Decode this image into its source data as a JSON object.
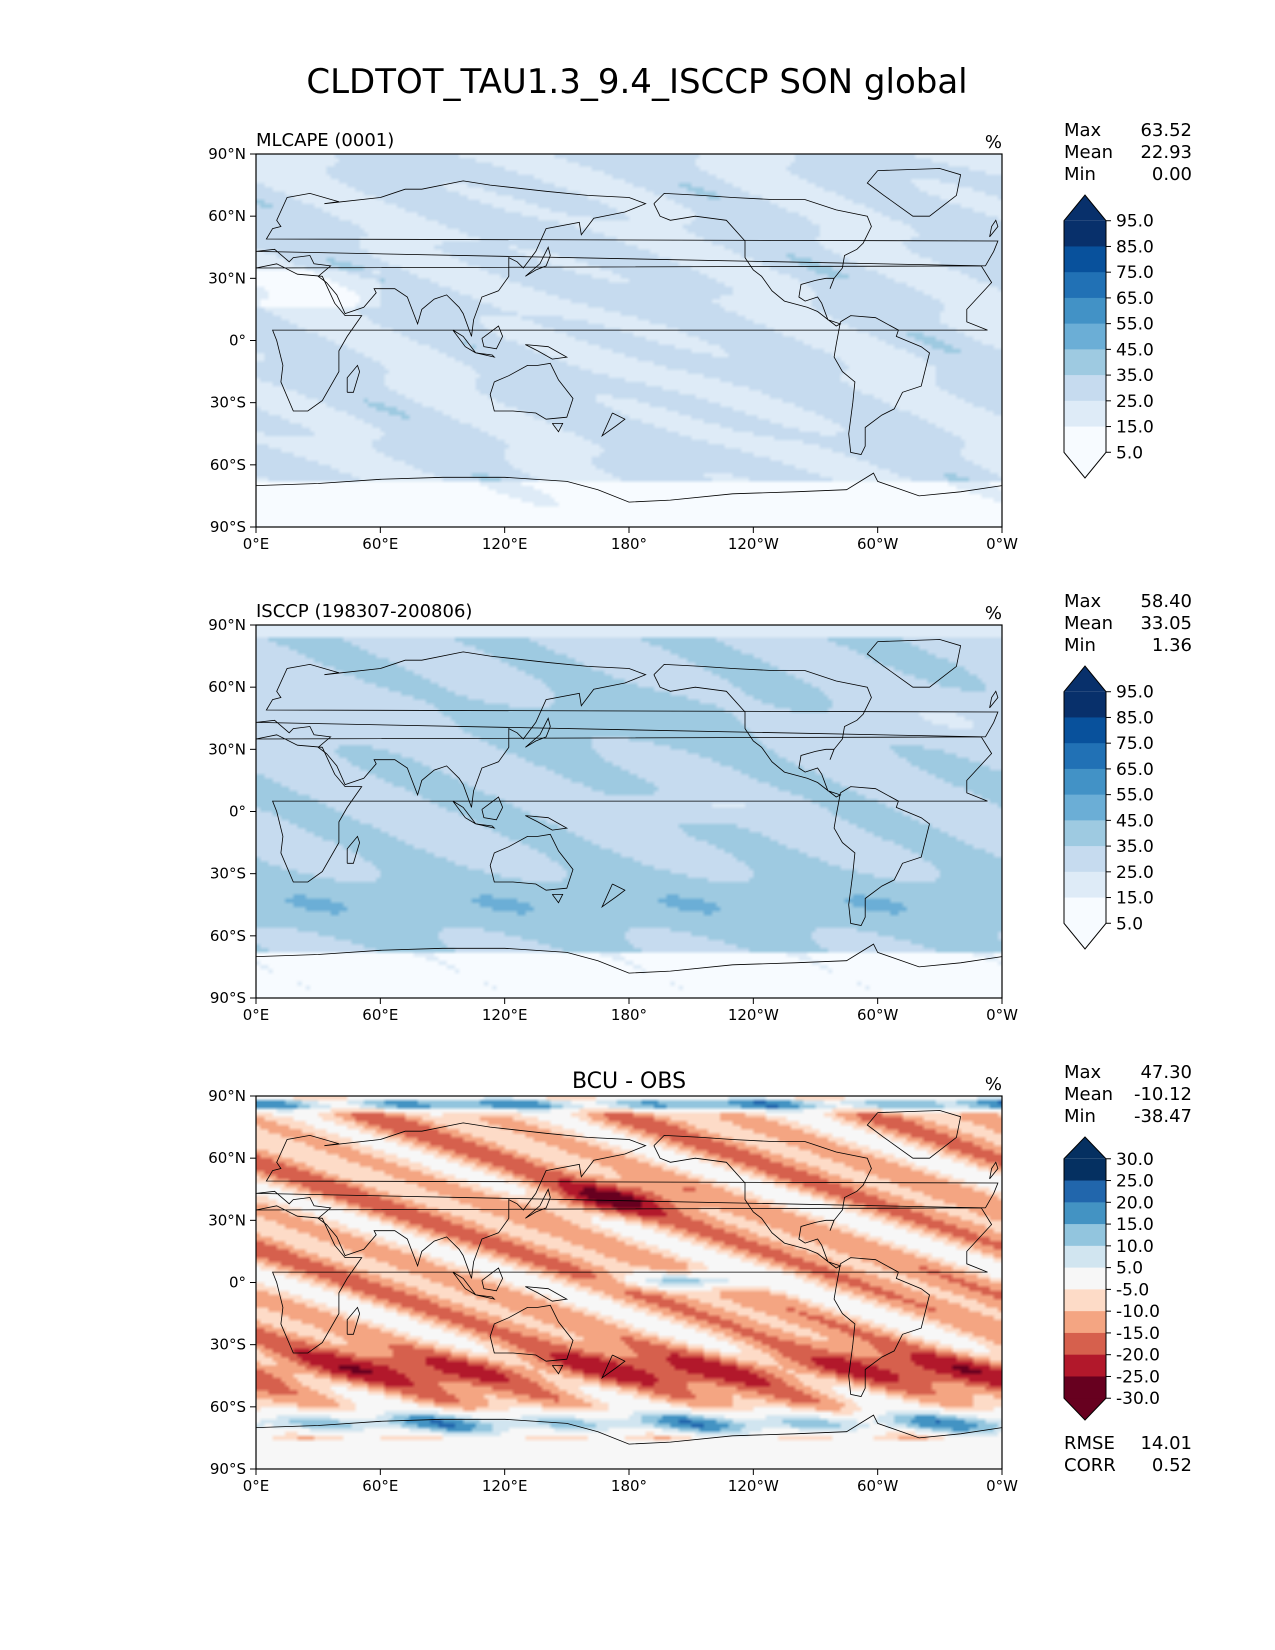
{
  "title": "CLDTOT_TAU1.3_9.4_ISCCP SON global",
  "chart_data": [
    {
      "type": "heatmap",
      "panel": "test",
      "left_title": "MLCAPE (0001)",
      "center_title": "",
      "units": "%",
      "stats": {
        "Max": "63.52",
        "Mean": "22.93",
        "Min": "0.00"
      },
      "xticks": [
        "0°E",
        "60°E",
        "120°E",
        "180°",
        "120°W",
        "60°W",
        "0°W"
      ],
      "yticks": [
        "90°N",
        "60°N",
        "30°N",
        "0°",
        "30°S",
        "60°S",
        "90°S"
      ],
      "colorbar": {
        "levels": [
          "95.0",
          "85.0",
          "75.0",
          "65.0",
          "55.0",
          "45.0",
          "35.0",
          "25.0",
          "15.0",
          "5.0"
        ],
        "colors": [
          "#08306b",
          "#08519c",
          "#2171b5",
          "#4292c6",
          "#6baed6",
          "#9ecae1",
          "#c6dbef",
          "#deebf7",
          "#f7fbff"
        ],
        "extend": "both"
      }
    },
    {
      "type": "heatmap",
      "panel": "reference",
      "left_title": "ISCCP (198307-200806)",
      "center_title": "",
      "units": "%",
      "stats": {
        "Max": "58.40",
        "Mean": "33.05",
        "Min": "1.36"
      },
      "xticks": [
        "0°E",
        "60°E",
        "120°E",
        "180°",
        "120°W",
        "60°W",
        "0°W"
      ],
      "yticks": [
        "90°N",
        "60°N",
        "30°N",
        "0°",
        "30°S",
        "60°S",
        "90°S"
      ],
      "colorbar": {
        "levels": [
          "95.0",
          "85.0",
          "75.0",
          "65.0",
          "55.0",
          "45.0",
          "35.0",
          "25.0",
          "15.0",
          "5.0"
        ],
        "colors": [
          "#08306b",
          "#08519c",
          "#2171b5",
          "#4292c6",
          "#6baed6",
          "#9ecae1",
          "#c6dbef",
          "#deebf7",
          "#f7fbff"
        ],
        "extend": "both"
      }
    },
    {
      "type": "heatmap",
      "panel": "difference",
      "left_title": "",
      "center_title": "BCU - OBS",
      "units": "%",
      "stats": {
        "Max": "47.30",
        "Mean": "-10.12",
        "Min": "-38.47"
      },
      "extra_stats": {
        "RMSE": "14.01",
        "CORR": "0.52"
      },
      "xticks": [
        "0°E",
        "60°E",
        "120°E",
        "180°",
        "120°W",
        "60°W",
        "0°W"
      ],
      "yticks": [
        "90°N",
        "60°N",
        "30°N",
        "0°",
        "30°S",
        "60°S",
        "90°S"
      ],
      "colorbar": {
        "levels": [
          "30.0",
          "25.0",
          "20.0",
          "15.0",
          "10.0",
          "5.0",
          "-5.0",
          "-10.0",
          "-15.0",
          "-20.0",
          "-25.0",
          "-30.0"
        ],
        "colors": [
          "#053061",
          "#2166ac",
          "#4393c3",
          "#92c5de",
          "#d1e5f0",
          "#f7f7f7",
          "#fddbc7",
          "#f4a582",
          "#d6604d",
          "#b2182b",
          "#67001f"
        ],
        "extend": "both"
      }
    }
  ]
}
